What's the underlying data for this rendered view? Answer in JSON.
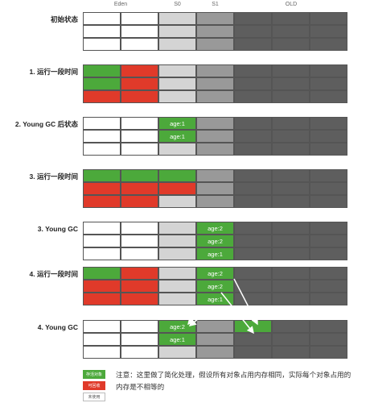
{
  "headers": {
    "eden": "Eden",
    "s0": "S0",
    "s1": "S1",
    "old": "OLD"
  },
  "colors": {
    "live": "#4ca93b",
    "dead": "#e03a2a",
    "empty": "#ffffff",
    "s0_bg": "#d4d4d4",
    "s1_bg": "#999999",
    "old_bg": "#5e5e5e",
    "border": "#555555"
  },
  "sections": [
    {
      "title": "初始状态",
      "eden": [
        [
          "empty",
          "empty"
        ],
        [
          "empty",
          "empty"
        ],
        [
          "empty",
          "empty"
        ]
      ],
      "s0": [
        null,
        null,
        null
      ],
      "s1": [
        null,
        null,
        null
      ],
      "old": [
        [
          "empty",
          "empty",
          "empty"
        ],
        [
          "empty",
          "empty",
          "empty"
        ],
        [
          "empty",
          "empty",
          "empty"
        ]
      ]
    },
    {
      "title": "1. 运行一段时间",
      "eden": [
        [
          "live",
          "dead"
        ],
        [
          "live",
          "dead"
        ],
        [
          "dead",
          "dead"
        ]
      ],
      "s0": [
        null,
        null,
        null
      ],
      "s1": [
        null,
        null,
        null
      ],
      "old": [
        [
          "empty",
          "empty",
          "empty"
        ],
        [
          "empty",
          "empty",
          "empty"
        ],
        [
          "empty",
          "empty",
          "empty"
        ]
      ]
    },
    {
      "title": "2. Young GC 后状态",
      "eden": [
        [
          "empty",
          "empty"
        ],
        [
          "empty",
          "empty"
        ],
        [
          "empty",
          "empty"
        ]
      ],
      "s0": [
        "age:1",
        "age:1",
        null
      ],
      "s1": [
        null,
        null,
        null
      ],
      "old": [
        [
          "empty",
          "empty",
          "empty"
        ],
        [
          "empty",
          "empty",
          "empty"
        ],
        [
          "empty",
          "empty",
          "empty"
        ]
      ]
    },
    {
      "title": "3. 运行一段时间",
      "eden": [
        [
          "live",
          "live"
        ],
        [
          "dead",
          "dead"
        ],
        [
          "dead",
          "dead"
        ]
      ],
      "s0": [
        "live",
        "dead",
        null
      ],
      "s1": [
        null,
        null,
        null
      ],
      "old": [
        [
          "empty",
          "empty",
          "empty"
        ],
        [
          "empty",
          "empty",
          "empty"
        ],
        [
          "empty",
          "empty",
          "empty"
        ]
      ]
    },
    {
      "title": "3. Young GC",
      "eden": [
        [
          "empty",
          "empty"
        ],
        [
          "empty",
          "empty"
        ],
        [
          "empty",
          "empty"
        ]
      ],
      "s0": [
        null,
        null,
        null
      ],
      "s1": [
        "age:2",
        "age:2",
        "age:1"
      ],
      "old": [
        [
          "empty",
          "empty",
          "empty"
        ],
        [
          "empty",
          "empty",
          "empty"
        ],
        [
          "empty",
          "empty",
          "empty"
        ]
      ]
    },
    {
      "title": "4. 运行一段时间",
      "eden": [
        [
          "live",
          "dead"
        ],
        [
          "dead",
          "dead"
        ],
        [
          "dead",
          "dead"
        ]
      ],
      "s0": [
        null,
        null,
        null
      ],
      "s1": [
        "age:2",
        "age:2",
        "age:1"
      ],
      "old": [
        [
          "empty",
          "empty",
          "empty"
        ],
        [
          "empty",
          "empty",
          "empty"
        ],
        [
          "empty",
          "empty",
          "empty"
        ]
      ]
    },
    {
      "title": "4. Young GC",
      "eden": [
        [
          "empty",
          "empty"
        ],
        [
          "empty",
          "empty"
        ],
        [
          "empty",
          "empty"
        ]
      ],
      "s0": [
        "age:2",
        "age:1",
        null
      ],
      "s1": [
        null,
        null,
        null
      ],
      "old": [
        [
          "live",
          "empty",
          "empty"
        ],
        [
          "empty",
          "empty",
          "empty"
        ],
        [
          "empty",
          "empty",
          "empty"
        ]
      ]
    }
  ],
  "legend": [
    {
      "label": "存活对象",
      "color": "#4ca93b",
      "text_color": "#ffffff"
    },
    {
      "label": "可回收",
      "color": "#e03a2a",
      "text_color": "#ffffff"
    },
    {
      "label": "未使用",
      "color": "#ffffff",
      "text_color": "#555555"
    }
  ],
  "note": "注意：这里做了简化处理，假设所有对象占用内存相同，实际每个对象占用的内存是不相等的"
}
